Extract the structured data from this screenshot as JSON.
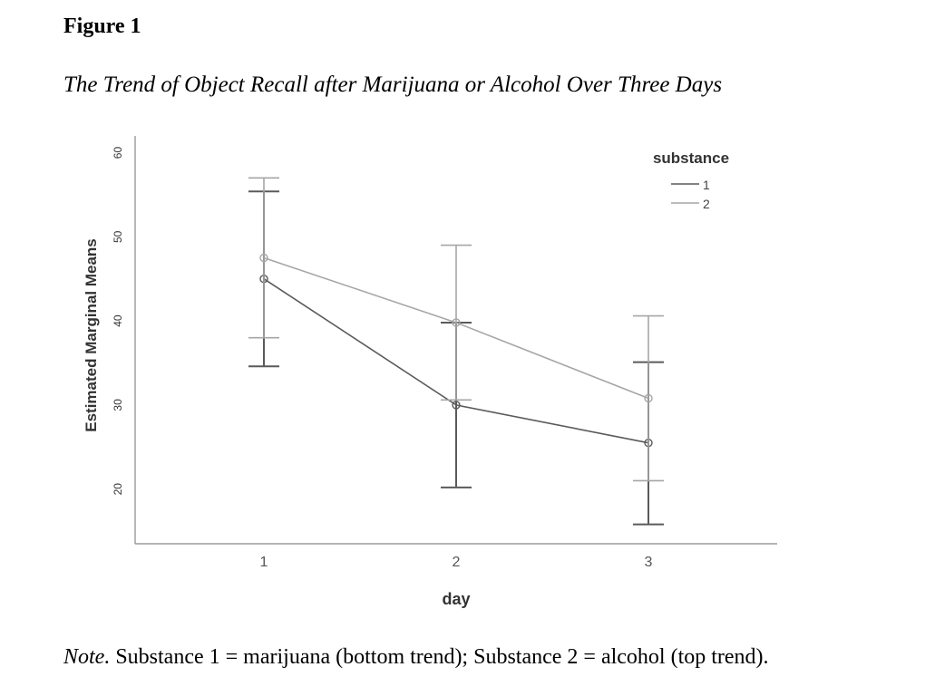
{
  "figure": {
    "label": "Figure 1",
    "title": "The Trend of Object Recall after Marijuana or Alcohol Over Three Days",
    "note_label": "Note.",
    "note_text": " Substance 1 = marijuana (bottom trend); Substance 2 = alcohol (top trend)."
  },
  "chart_data": {
    "type": "line",
    "xlabel": "day",
    "ylabel": "Estimated Marginal Means",
    "categories": [
      "1",
      "2",
      "3"
    ],
    "yticks": [
      20,
      30,
      40,
      50,
      60
    ],
    "ylim": [
      13.5,
      61
    ],
    "grid": false,
    "legend": {
      "title": "substance",
      "position": "top-right"
    },
    "series": [
      {
        "name": "1",
        "color": "#5a5a5a",
        "values": [
          45.0,
          30.0,
          25.5
        ],
        "err_low": [
          34.6,
          20.2,
          15.8
        ],
        "err_high": [
          55.4,
          39.8,
          35.1
        ]
      },
      {
        "name": "2",
        "color": "#a6a6a6",
        "values": [
          47.5,
          39.8,
          30.8
        ],
        "err_low": [
          38.0,
          30.6,
          21.0
        ],
        "err_high": [
          57.0,
          49.0,
          40.6
        ]
      }
    ]
  }
}
